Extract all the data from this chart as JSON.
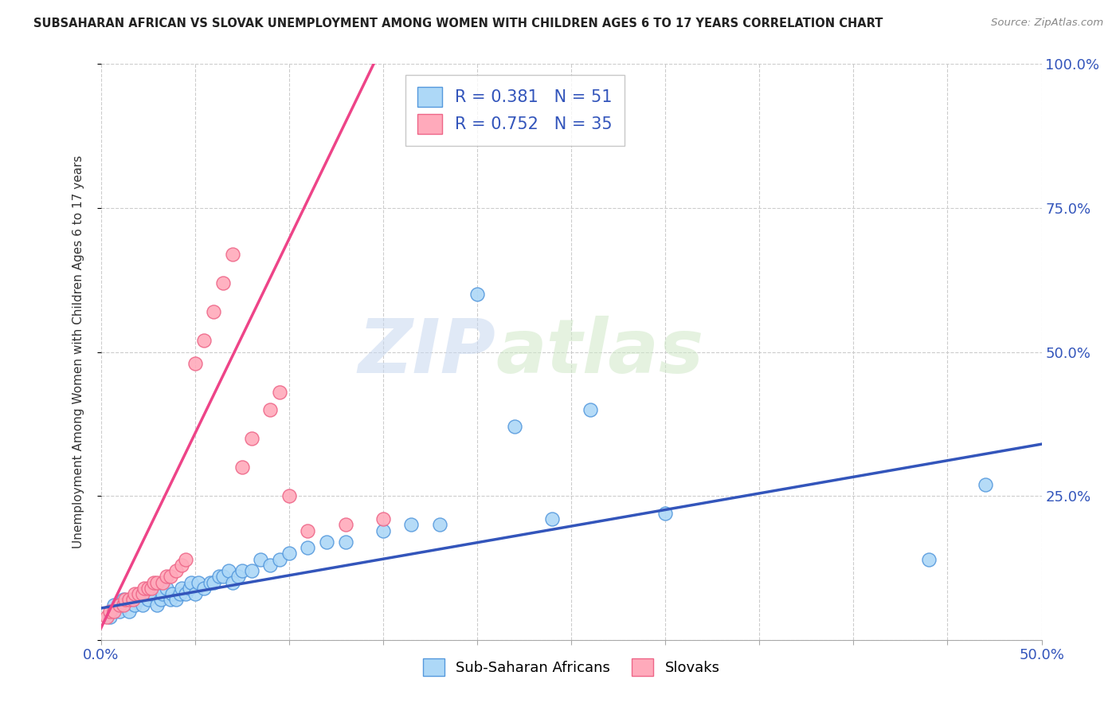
{
  "title": "SUBSAHARAN AFRICAN VS SLOVAK UNEMPLOYMENT AMONG WOMEN WITH CHILDREN AGES 6 TO 17 YEARS CORRELATION CHART",
  "source": "Source: ZipAtlas.com",
  "ylabel": "Unemployment Among Women with Children Ages 6 to 17 years",
  "xlim": [
    0.0,
    0.5
  ],
  "ylim": [
    0.0,
    1.0
  ],
  "xticks": [
    0.0,
    0.05,
    0.1,
    0.15,
    0.2,
    0.25,
    0.3,
    0.35,
    0.4,
    0.45,
    0.5
  ],
  "ytick_positions": [
    0.0,
    0.25,
    0.5,
    0.75,
    1.0
  ],
  "ytick_labels": [
    "",
    "25.0%",
    "50.0%",
    "75.0%",
    "100.0%"
  ],
  "blue_R": 0.381,
  "blue_N": 51,
  "pink_R": 0.752,
  "pink_N": 35,
  "blue_color": "#ADD8F7",
  "pink_color": "#FFAABB",
  "blue_edge_color": "#5599DD",
  "pink_edge_color": "#EE6688",
  "blue_line_color": "#3355BB",
  "pink_line_color": "#EE4488",
  "legend_label_blue": "Sub-Saharan Africans",
  "legend_label_pink": "Slovaks",
  "watermark_zip": "ZIP",
  "watermark_atlas": "atlas",
  "blue_scatter_x": [
    0.005,
    0.007,
    0.01,
    0.012,
    0.015,
    0.018,
    0.02,
    0.022,
    0.025,
    0.027,
    0.03,
    0.032,
    0.033,
    0.035,
    0.037,
    0.038,
    0.04,
    0.042,
    0.043,
    0.045,
    0.047,
    0.048,
    0.05,
    0.052,
    0.055,
    0.058,
    0.06,
    0.063,
    0.065,
    0.068,
    0.07,
    0.073,
    0.075,
    0.08,
    0.085,
    0.09,
    0.095,
    0.1,
    0.11,
    0.12,
    0.13,
    0.15,
    0.165,
    0.18,
    0.2,
    0.22,
    0.24,
    0.26,
    0.3,
    0.44,
    0.47
  ],
  "blue_scatter_y": [
    0.04,
    0.06,
    0.05,
    0.07,
    0.05,
    0.06,
    0.07,
    0.06,
    0.07,
    0.08,
    0.06,
    0.07,
    0.08,
    0.09,
    0.07,
    0.08,
    0.07,
    0.08,
    0.09,
    0.08,
    0.09,
    0.1,
    0.08,
    0.1,
    0.09,
    0.1,
    0.1,
    0.11,
    0.11,
    0.12,
    0.1,
    0.11,
    0.12,
    0.12,
    0.14,
    0.13,
    0.14,
    0.15,
    0.16,
    0.17,
    0.17,
    0.19,
    0.2,
    0.2,
    0.6,
    0.37,
    0.21,
    0.4,
    0.22,
    0.14,
    0.27
  ],
  "pink_scatter_x": [
    0.003,
    0.005,
    0.007,
    0.01,
    0.012,
    0.013,
    0.015,
    0.017,
    0.018,
    0.02,
    0.022,
    0.023,
    0.025,
    0.027,
    0.028,
    0.03,
    0.033,
    0.035,
    0.037,
    0.04,
    0.043,
    0.045,
    0.05,
    0.055,
    0.06,
    0.065,
    0.07,
    0.075,
    0.08,
    0.09,
    0.095,
    0.1,
    0.11,
    0.13,
    0.15
  ],
  "pink_scatter_y": [
    0.04,
    0.05,
    0.05,
    0.06,
    0.06,
    0.07,
    0.07,
    0.07,
    0.08,
    0.08,
    0.08,
    0.09,
    0.09,
    0.09,
    0.1,
    0.1,
    0.1,
    0.11,
    0.11,
    0.12,
    0.13,
    0.14,
    0.48,
    0.52,
    0.57,
    0.62,
    0.67,
    0.3,
    0.35,
    0.4,
    0.43,
    0.25,
    0.19,
    0.2,
    0.21
  ],
  "blue_line_x": [
    0.0,
    0.5
  ],
  "blue_line_y": [
    0.055,
    0.34
  ],
  "pink_line_x": [
    0.0,
    0.145
  ],
  "pink_line_y": [
    0.02,
    1.0
  ]
}
